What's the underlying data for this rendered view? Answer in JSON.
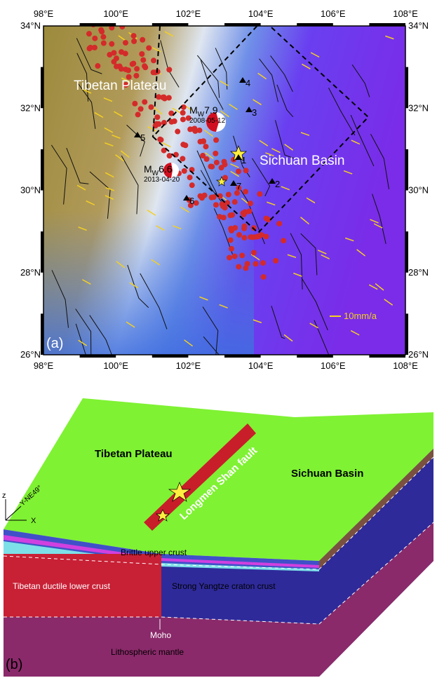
{
  "panel_a": {
    "label": "(a)",
    "x_ticks": [
      "98°E",
      "100°E",
      "102°E",
      "104°E",
      "106°E",
      "108°E"
    ],
    "y_ticks": [
      "34°N",
      "32°N",
      "30°N",
      "28°N",
      "26°N"
    ],
    "region_west": "Tibetan Plateau",
    "region_east": "Sichuan Basin",
    "scale": "10mm/a",
    "events": [
      {
        "symbol": "M",
        "sub": "W",
        "magnitude": "7.9",
        "date": "2008-05-12"
      },
      {
        "symbol": "M",
        "sub": "W",
        "magnitude": "6.6",
        "date": "2013-04-20"
      }
    ],
    "stations": [
      "1",
      "2",
      "3",
      "4",
      "5",
      "6",
      "7"
    ]
  },
  "panel_b": {
    "label": "(b)",
    "region_west": "Tibetan Plateau",
    "region_east": "Sichuan Basin",
    "fault": "Longmen Shan fault",
    "upper_crust": "Brittle upper crust",
    "lower_crust_west": "Tibetan ductile lower crust",
    "crust_east": "Strong Yangtze craton crust",
    "moho": "Moho",
    "mantle": "Lithospheric mantle",
    "axis_z": "z",
    "axis_y": "Y-NE49°",
    "axis_x": "X"
  }
}
